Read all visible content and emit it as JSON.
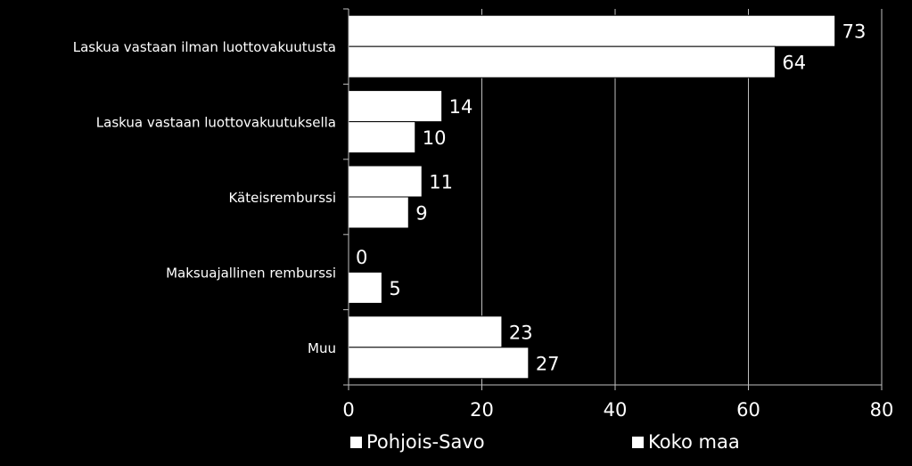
{
  "chart_data": {
    "type": "bar",
    "orientation": "horizontal",
    "categories": [
      "Laskua vastaan ilman luottovakuutusta",
      "Laskua vastaan luottovakuutuksella",
      "Käteisremburssi",
      "Maksuajallinen remburssi",
      "Muu"
    ],
    "series": [
      {
        "name": "Pohjois-Savo",
        "values": [
          73,
          14,
          11,
          0,
          23
        ]
      },
      {
        "name": "Koko maa",
        "values": [
          64,
          10,
          9,
          5,
          27
        ]
      }
    ],
    "xlim": [
      0,
      80
    ],
    "xticks": [
      "0",
      "20",
      "40",
      "60",
      "80"
    ],
    "grid": true,
    "legend": "bottom",
    "colors": {
      "background": "#000000",
      "bars": "#ffffff",
      "bar_edge": "#000000",
      "grid": "#bfbfbf",
      "text": "#ffffff"
    }
  },
  "legend": {
    "item1": "Pohjois-Savo",
    "item2": "Koko maa"
  }
}
